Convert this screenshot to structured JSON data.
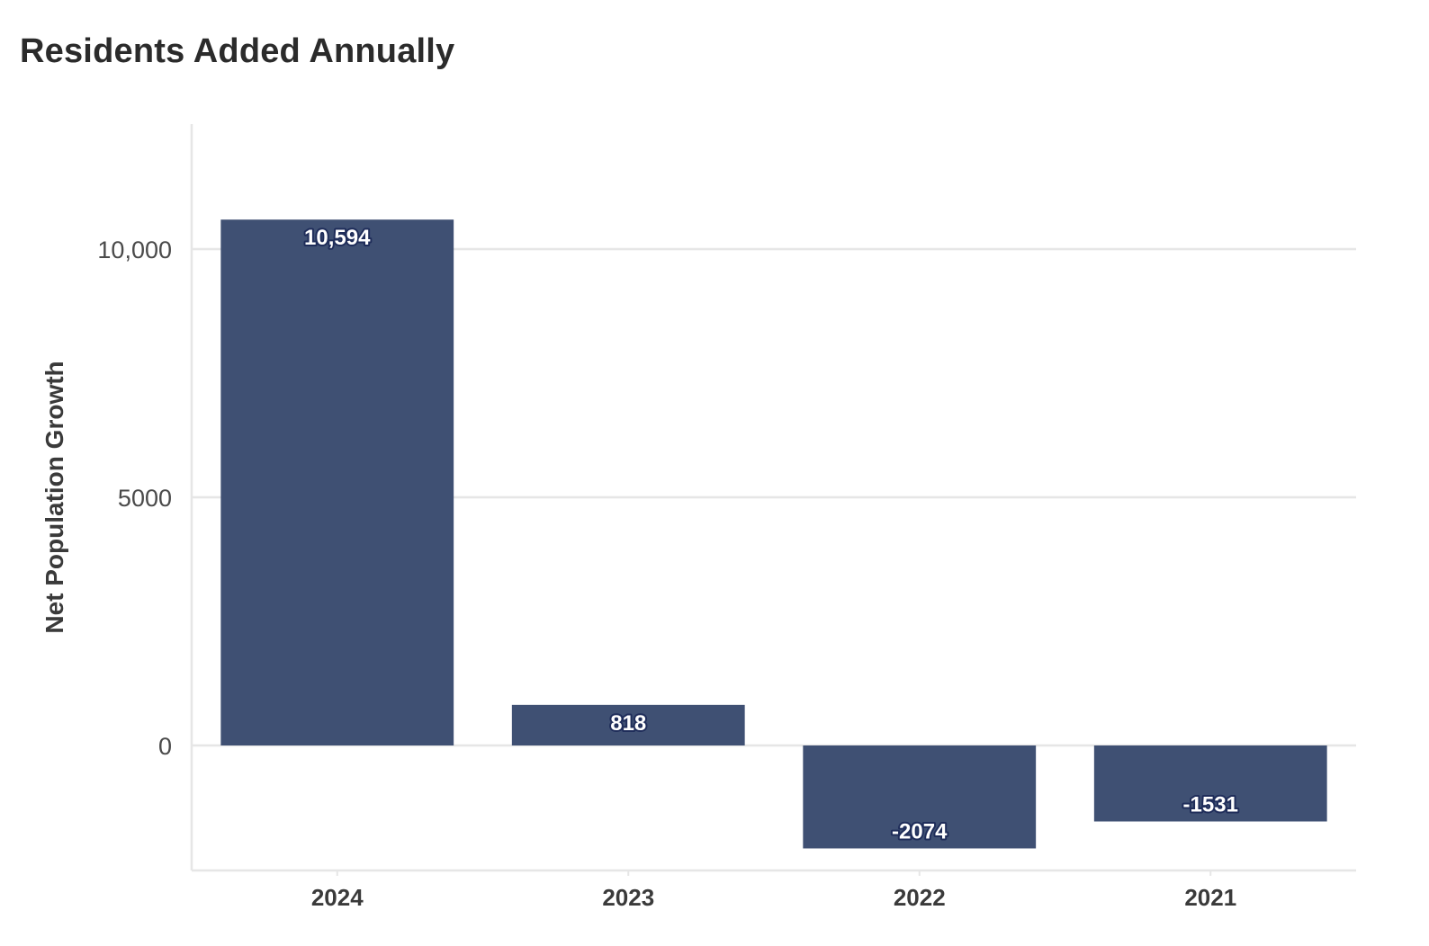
{
  "chart_data": {
    "type": "bar",
    "title": "Residents Added Annually",
    "xlabel": "",
    "ylabel": "Net Population Growth",
    "categories": [
      "2024",
      "2023",
      "2022",
      "2021"
    ],
    "values": [
      10594,
      818,
      -2074,
      -1531
    ],
    "data_labels": [
      "10,594",
      "818",
      "-2074",
      "-1531"
    ],
    "yticks": [
      0,
      5000,
      10000
    ],
    "ytick_labels": [
      "0",
      "5000",
      "10,000"
    ],
    "ylim": [
      -2500,
      12500
    ],
    "bar_color": "#3f5073",
    "gridlines": "horizontal",
    "legend": "none"
  }
}
